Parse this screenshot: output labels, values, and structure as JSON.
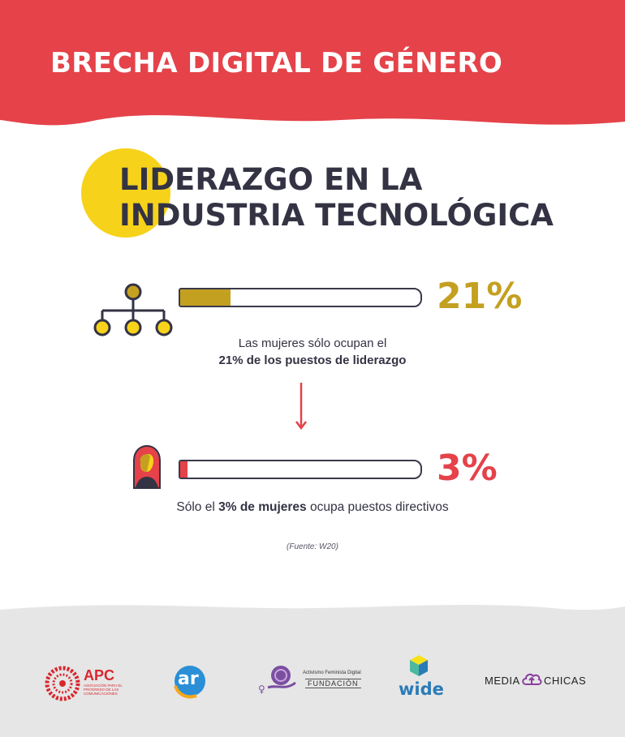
{
  "header": {
    "title": "BRECHA DIGITAL DE GÉNERO",
    "bg_color": "#e5424a"
  },
  "section": {
    "title_line1": "LIDERAZGO EN LA",
    "title_line2": "INDUSTRIA TECNOLÓGICA",
    "accent_color": "#f7d21a"
  },
  "stats": [
    {
      "icon": "org-chart-icon",
      "value": 21,
      "value_label": "21%",
      "color": "#c4a020",
      "caption_line1": "Las mujeres sólo ocupan el",
      "caption_line2_bold": "21% de los puestos de liderazgo"
    },
    {
      "icon": "woman-icon",
      "value": 3,
      "value_label": "3%",
      "color": "#e5424a",
      "caption_pre": "Sólo el ",
      "caption_bold": "3% de mujeres",
      "caption_post": " ocupa puestos directivos"
    }
  ],
  "source": "(Fuente: W20)",
  "footer": {
    "logos": [
      {
        "name": "APC",
        "text": "APC",
        "sub": "ASOCIACIÓN PARA EL PROGRESO DE LAS COMUNICACIONES"
      },
      {
        "name": "ar",
        "text": "ar"
      },
      {
        "name": "fundacion",
        "line1": "Activismo Feminista Digital",
        "line2": "FUNDACIÓN"
      },
      {
        "name": "wide",
        "text": "wide"
      },
      {
        "name": "mediachicas",
        "left": "MEDIA",
        "right": "CHICAS"
      }
    ]
  }
}
